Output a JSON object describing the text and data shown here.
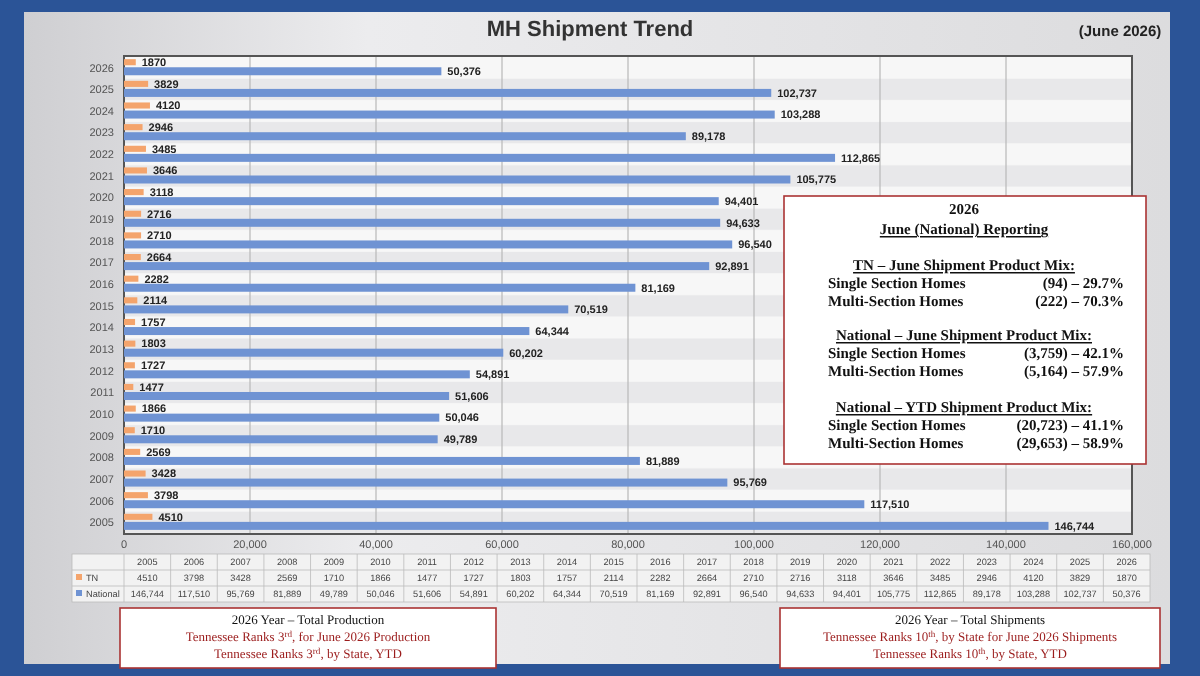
{
  "chart_data": {
    "type": "bar",
    "orientation": "horizontal",
    "title": "MH Shipment Trend",
    "categories": [
      "2026",
      "2025",
      "2024",
      "2023",
      "2022",
      "2021",
      "2020",
      "2019",
      "2018",
      "2017",
      "2016",
      "2015",
      "2014",
      "2013",
      "2012",
      "2011",
      "2010",
      "2009",
      "2008",
      "2007",
      "2006",
      "2005"
    ],
    "series": [
      {
        "name": "TN",
        "color": "#f4a46c",
        "values": [
          1870,
          3829,
          4120,
          2946,
          3485,
          3646,
          3118,
          2716,
          2710,
          2664,
          2282,
          2114,
          1757,
          1803,
          1727,
          1477,
          1866,
          1710,
          2569,
          3428,
          3798,
          4510
        ],
        "value_labels": [
          "1870",
          "3829",
          "4120",
          "2946",
          "3485",
          "3646",
          "3118",
          "2716",
          "2710",
          "2664",
          "2282",
          "2114",
          "1757",
          "1803",
          "1727",
          "1477",
          "1866",
          "1710",
          "2569",
          "3428",
          "3798",
          "4510"
        ]
      },
      {
        "name": "National",
        "color": "#6f93d3",
        "values": [
          50376,
          102737,
          103288,
          89178,
          112865,
          105775,
          94401,
          94633,
          96540,
          92891,
          81169,
          70519,
          64344,
          60202,
          54891,
          51606,
          50046,
          49789,
          81889,
          95769,
          117510,
          146744
        ],
        "value_labels": [
          "50,376",
          "102,737",
          "103,288",
          "89,178",
          "112,865",
          "105,775",
          "94,401",
          "94,633",
          "96,540",
          "92,891",
          "81,169",
          "70,519",
          "64,344",
          "60,202",
          "54,891",
          "51,606",
          "50,046",
          "49,789",
          "81,889",
          "95,769",
          "117,510",
          "146,744"
        ]
      }
    ],
    "xlim": [
      0,
      160000
    ],
    "xticks": [
      0,
      {
        "value": 20000,
        "label": "20,000"
      },
      {
        "value": 40000,
        "label": "40,000"
      },
      {
        "value": 60000,
        "label": "60,000"
      },
      {
        "value": 80000,
        "label": "80,000"
      },
      {
        "value": 100000,
        "label": "100,000"
      },
      {
        "value": 120000,
        "label": "120,000"
      },
      {
        "value": 140000,
        "label": "140,000"
      },
      {
        "value": 160000,
        "label": "160,000"
      }
    ],
    "grid": "x",
    "legend": "bottom",
    "annotations": [
      "(June 2026)",
      "2026",
      "June (National) Reporting",
      "TN – June Shipment Product Mix:",
      "Single Section Homes",
      "(94) – 29.7%",
      "Multi-Section Homes",
      "(222) – 70.3%",
      "National – June Shipment Product Mix:",
      "Single Section Homes",
      "(3,759) – 42.1%",
      "Multi-Section Homes",
      "(5,164) – 57.9%",
      "National – YTD Shipment Product Mix:",
      "Single Section Homes",
      "(20,723) – 41.1%",
      "Multi-Section Homes",
      "(29,653) – 58.9%",
      "2026 Year – Total Production",
      "Tennessee Ranks 3$^{rd}$, for June 2026 Production",
      "Tennessee Ranks 3$^{rd}$, by State, YTD",
      "2026 Year – Total Shipments",
      "Tennessee Ranks 10$^{th}$, by State for June 2026 Shipments",
      "Tennessee Ranks 10$^{th}$, by State, YTD"
    ]
  }
}
